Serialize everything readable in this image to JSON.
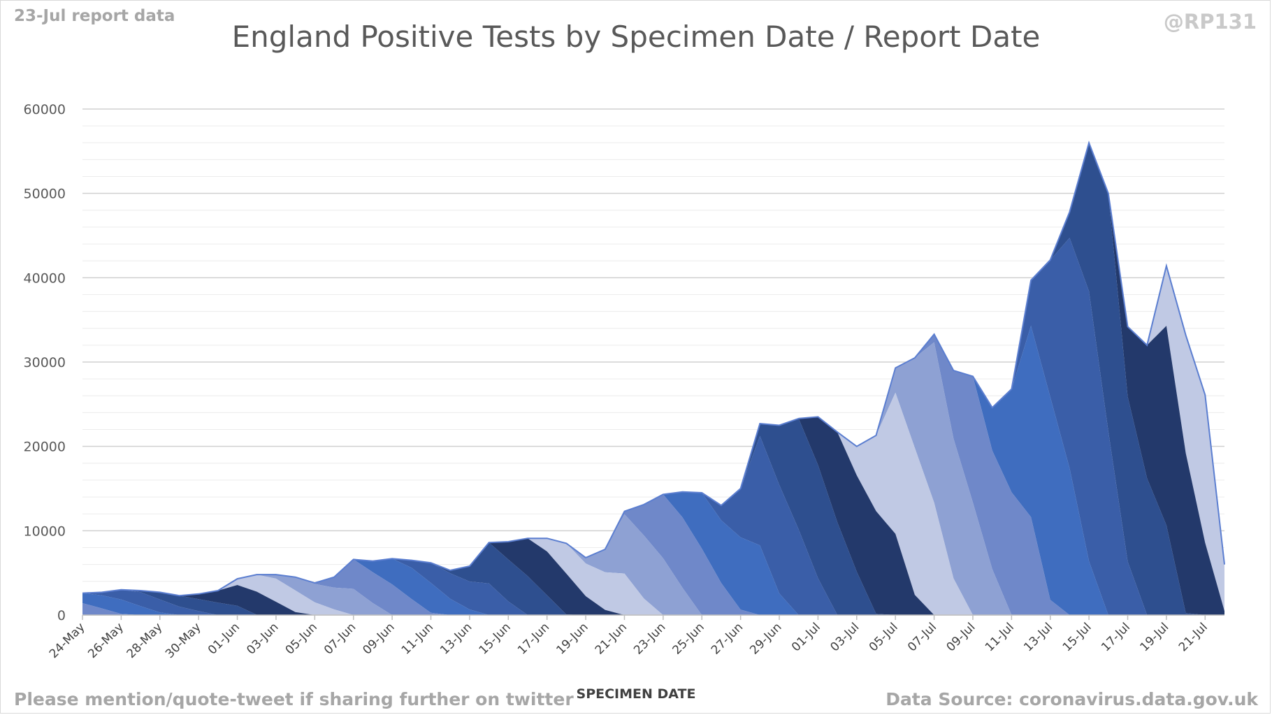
{
  "header": {
    "report_label": "23-Jul report data",
    "handle": "@RP131"
  },
  "footer": {
    "left": "Please mention/quote-tweet if sharing further on twitter",
    "right": "Data Source: coronavirus.data.gov.uk"
  },
  "colors": {
    "band_palette": [
      "#c0c9e4",
      "#8ea1d3",
      "#6f88c9",
      "#3f6dbf",
      "#3a5ea8",
      "#2e4f8f",
      "#23396b"
    ],
    "grid": "#d9d9d9",
    "outline": "#5b7ed0"
  },
  "chart_data": {
    "type": "area",
    "title": "England Positive Tests by Specimen Date / Report Date",
    "xlabel": "SPECIMEN DATE",
    "ylabel": "",
    "ylim": [
      0,
      60000
    ],
    "yticks": [
      0,
      10000,
      20000,
      30000,
      40000,
      50000,
      60000
    ],
    "grid": true,
    "stacked": true,
    "legend": "none",
    "x": [
      "24-May",
      "25-May",
      "26-May",
      "27-May",
      "28-May",
      "29-May",
      "30-May",
      "31-May",
      "01-Jun",
      "02-Jun",
      "03-Jun",
      "04-Jun",
      "05-Jun",
      "06-Jun",
      "07-Jun",
      "08-Jun",
      "09-Jun",
      "10-Jun",
      "11-Jun",
      "12-Jun",
      "13-Jun",
      "14-Jun",
      "15-Jun",
      "16-Jun",
      "17-Jun",
      "18-Jun",
      "19-Jun",
      "20-Jun",
      "21-Jun",
      "22-Jun",
      "23-Jun",
      "24-Jun",
      "25-Jun",
      "26-Jun",
      "27-Jun",
      "28-Jun",
      "29-Jun",
      "30-Jun",
      "01-Jul",
      "02-Jul",
      "03-Jul",
      "04-Jul",
      "05-Jul",
      "06-Jul",
      "07-Jul",
      "08-Jul",
      "09-Jul",
      "10-Jul",
      "11-Jul",
      "12-Jul",
      "13-Jul",
      "14-Jul",
      "15-Jul",
      "16-Jul",
      "17-Jul",
      "18-Jul",
      "19-Jul",
      "20-Jul",
      "21-Jul",
      "22-Jul"
    ],
    "x_tick_labels": [
      "24-May",
      "26-May",
      "28-May",
      "30-May",
      "01-Jun",
      "03-Jun",
      "05-Jun",
      "07-Jun",
      "09-Jun",
      "11-Jun",
      "13-Jun",
      "15-Jun",
      "17-Jun",
      "19-Jun",
      "21-Jun",
      "23-Jun",
      "25-Jun",
      "27-Jun",
      "29-Jun",
      "01-Jul",
      "03-Jul",
      "05-Jul",
      "07-Jul",
      "09-Jul",
      "11-Jul",
      "13-Jul",
      "15-Jul",
      "17-Jul",
      "19-Jul",
      "21-Jul"
    ],
    "totals": [
      2600,
      2700,
      3000,
      2900,
      2700,
      2300,
      2500,
      2900,
      4300,
      4800,
      4800,
      4500,
      3800,
      4500,
      6600,
      6400,
      6700,
      6500,
      6200,
      5300,
      5800,
      8600,
      8700,
      9100,
      9100,
      8500,
      6800,
      7800,
      12300,
      13100,
      14300,
      14600,
      14500,
      13000,
      15000,
      22700,
      22500,
      23300,
      23500,
      21700,
      20000,
      21300,
      29300,
      30500,
      33300,
      29000,
      28300,
      24600,
      26800,
      39700,
      42100,
      47800,
      56000,
      50000,
      34200,
      32000,
      41400,
      33200,
      26100,
      6000
    ],
    "report_band_width_days": 4
  }
}
